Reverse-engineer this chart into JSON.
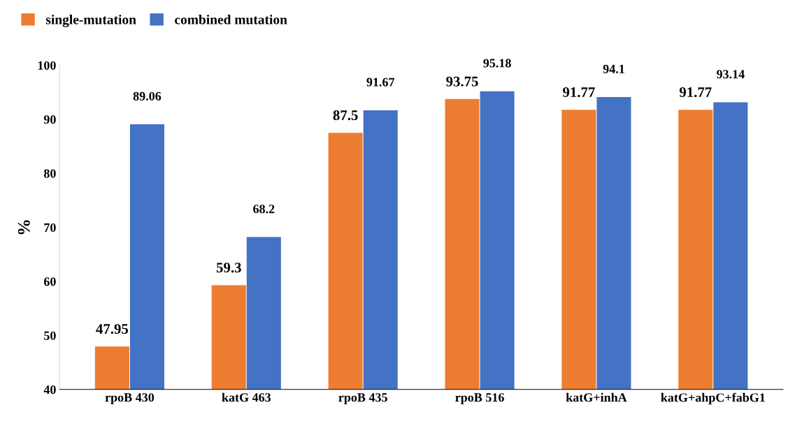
{
  "chart_data": {
    "type": "bar",
    "ylabel": "%",
    "categories": [
      "rpoB 430",
      "katG 463",
      "rpoB 435",
      "rpoB 516",
      "katG+inhA",
      "katG+ahpC+fabG1"
    ],
    "series": [
      {
        "name": "single-mutation",
        "color": "#ed7d31",
        "values": [
          47.95,
          59.3,
          87.5,
          93.75,
          91.77,
          91.77
        ]
      },
      {
        "name": "combined mutation",
        "color": "#4472c4",
        "values": [
          89.06,
          68.2,
          91.67,
          95.18,
          94.1,
          93.14
        ]
      }
    ],
    "ylim": [
      40,
      100
    ],
    "yticks": [
      40,
      50,
      60,
      70,
      80,
      90,
      100
    ],
    "data_labels": true,
    "grid": false,
    "legend": "top left"
  }
}
